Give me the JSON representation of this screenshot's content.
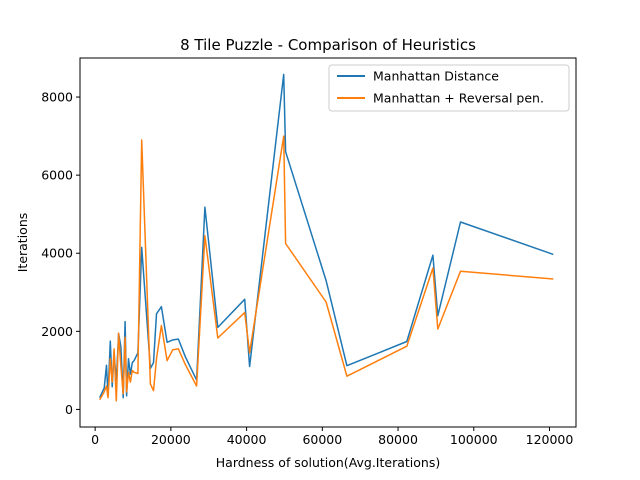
{
  "chart_data": {
    "type": "line",
    "title": "8 Tile Puzzle - Comparison of Heuristics",
    "xlabel": "Hardness of solution(Avg.Iterations)",
    "ylabel": "Iterations",
    "xlim": [
      -4000,
      127000
    ],
    "ylim": [
      -450,
      9000
    ],
    "xticks": [
      0,
      20000,
      40000,
      60000,
      80000,
      100000,
      120000
    ],
    "yticks": [
      0,
      2000,
      4000,
      6000,
      8000
    ],
    "legend": "top-right",
    "grid": false,
    "x": [
      1200,
      2400,
      3000,
      3400,
      4000,
      4500,
      5000,
      5600,
      6200,
      6800,
      7400,
      7900,
      8300,
      8800,
      9300,
      9800,
      10300,
      11300,
      12300,
      14600,
      15400,
      16200,
      17500,
      19000,
      20500,
      22000,
      23800,
      26800,
      29000,
      32400,
      39500,
      40800,
      49800,
      50300,
      61000,
      66500,
      82300,
      89200,
      90500,
      96500,
      121000
    ],
    "series": [
      {
        "name": "Manhattan Distance",
        "color": "#1f77b4",
        "values": [
          300,
          550,
          1130,
          350,
          1750,
          580,
          1450,
          700,
          1950,
          1600,
          300,
          2250,
          350,
          1300,
          900,
          1200,
          1250,
          1450,
          4150,
          1050,
          1200,
          2450,
          2630,
          1720,
          1780,
          1800,
          1350,
          750,
          5180,
          2100,
          2820,
          1100,
          8580,
          6600,
          3300,
          1120,
          1740,
          3950,
          2400,
          4800,
          3970
        ]
      },
      {
        "name": "Manhattan + Reversal pen.",
        "color": "#ff7f0e",
        "values": [
          250,
          450,
          600,
          300,
          1300,
          700,
          1550,
          220,
          1950,
          1100,
          400,
          1850,
          450,
          950,
          700,
          1000,
          950,
          920,
          6900,
          650,
          480,
          1300,
          2150,
          1250,
          1530,
          1550,
          1150,
          600,
          4450,
          1830,
          2480,
          1450,
          7000,
          4250,
          2750,
          850,
          1620,
          3620,
          2060,
          3540,
          3340
        ]
      }
    ]
  }
}
